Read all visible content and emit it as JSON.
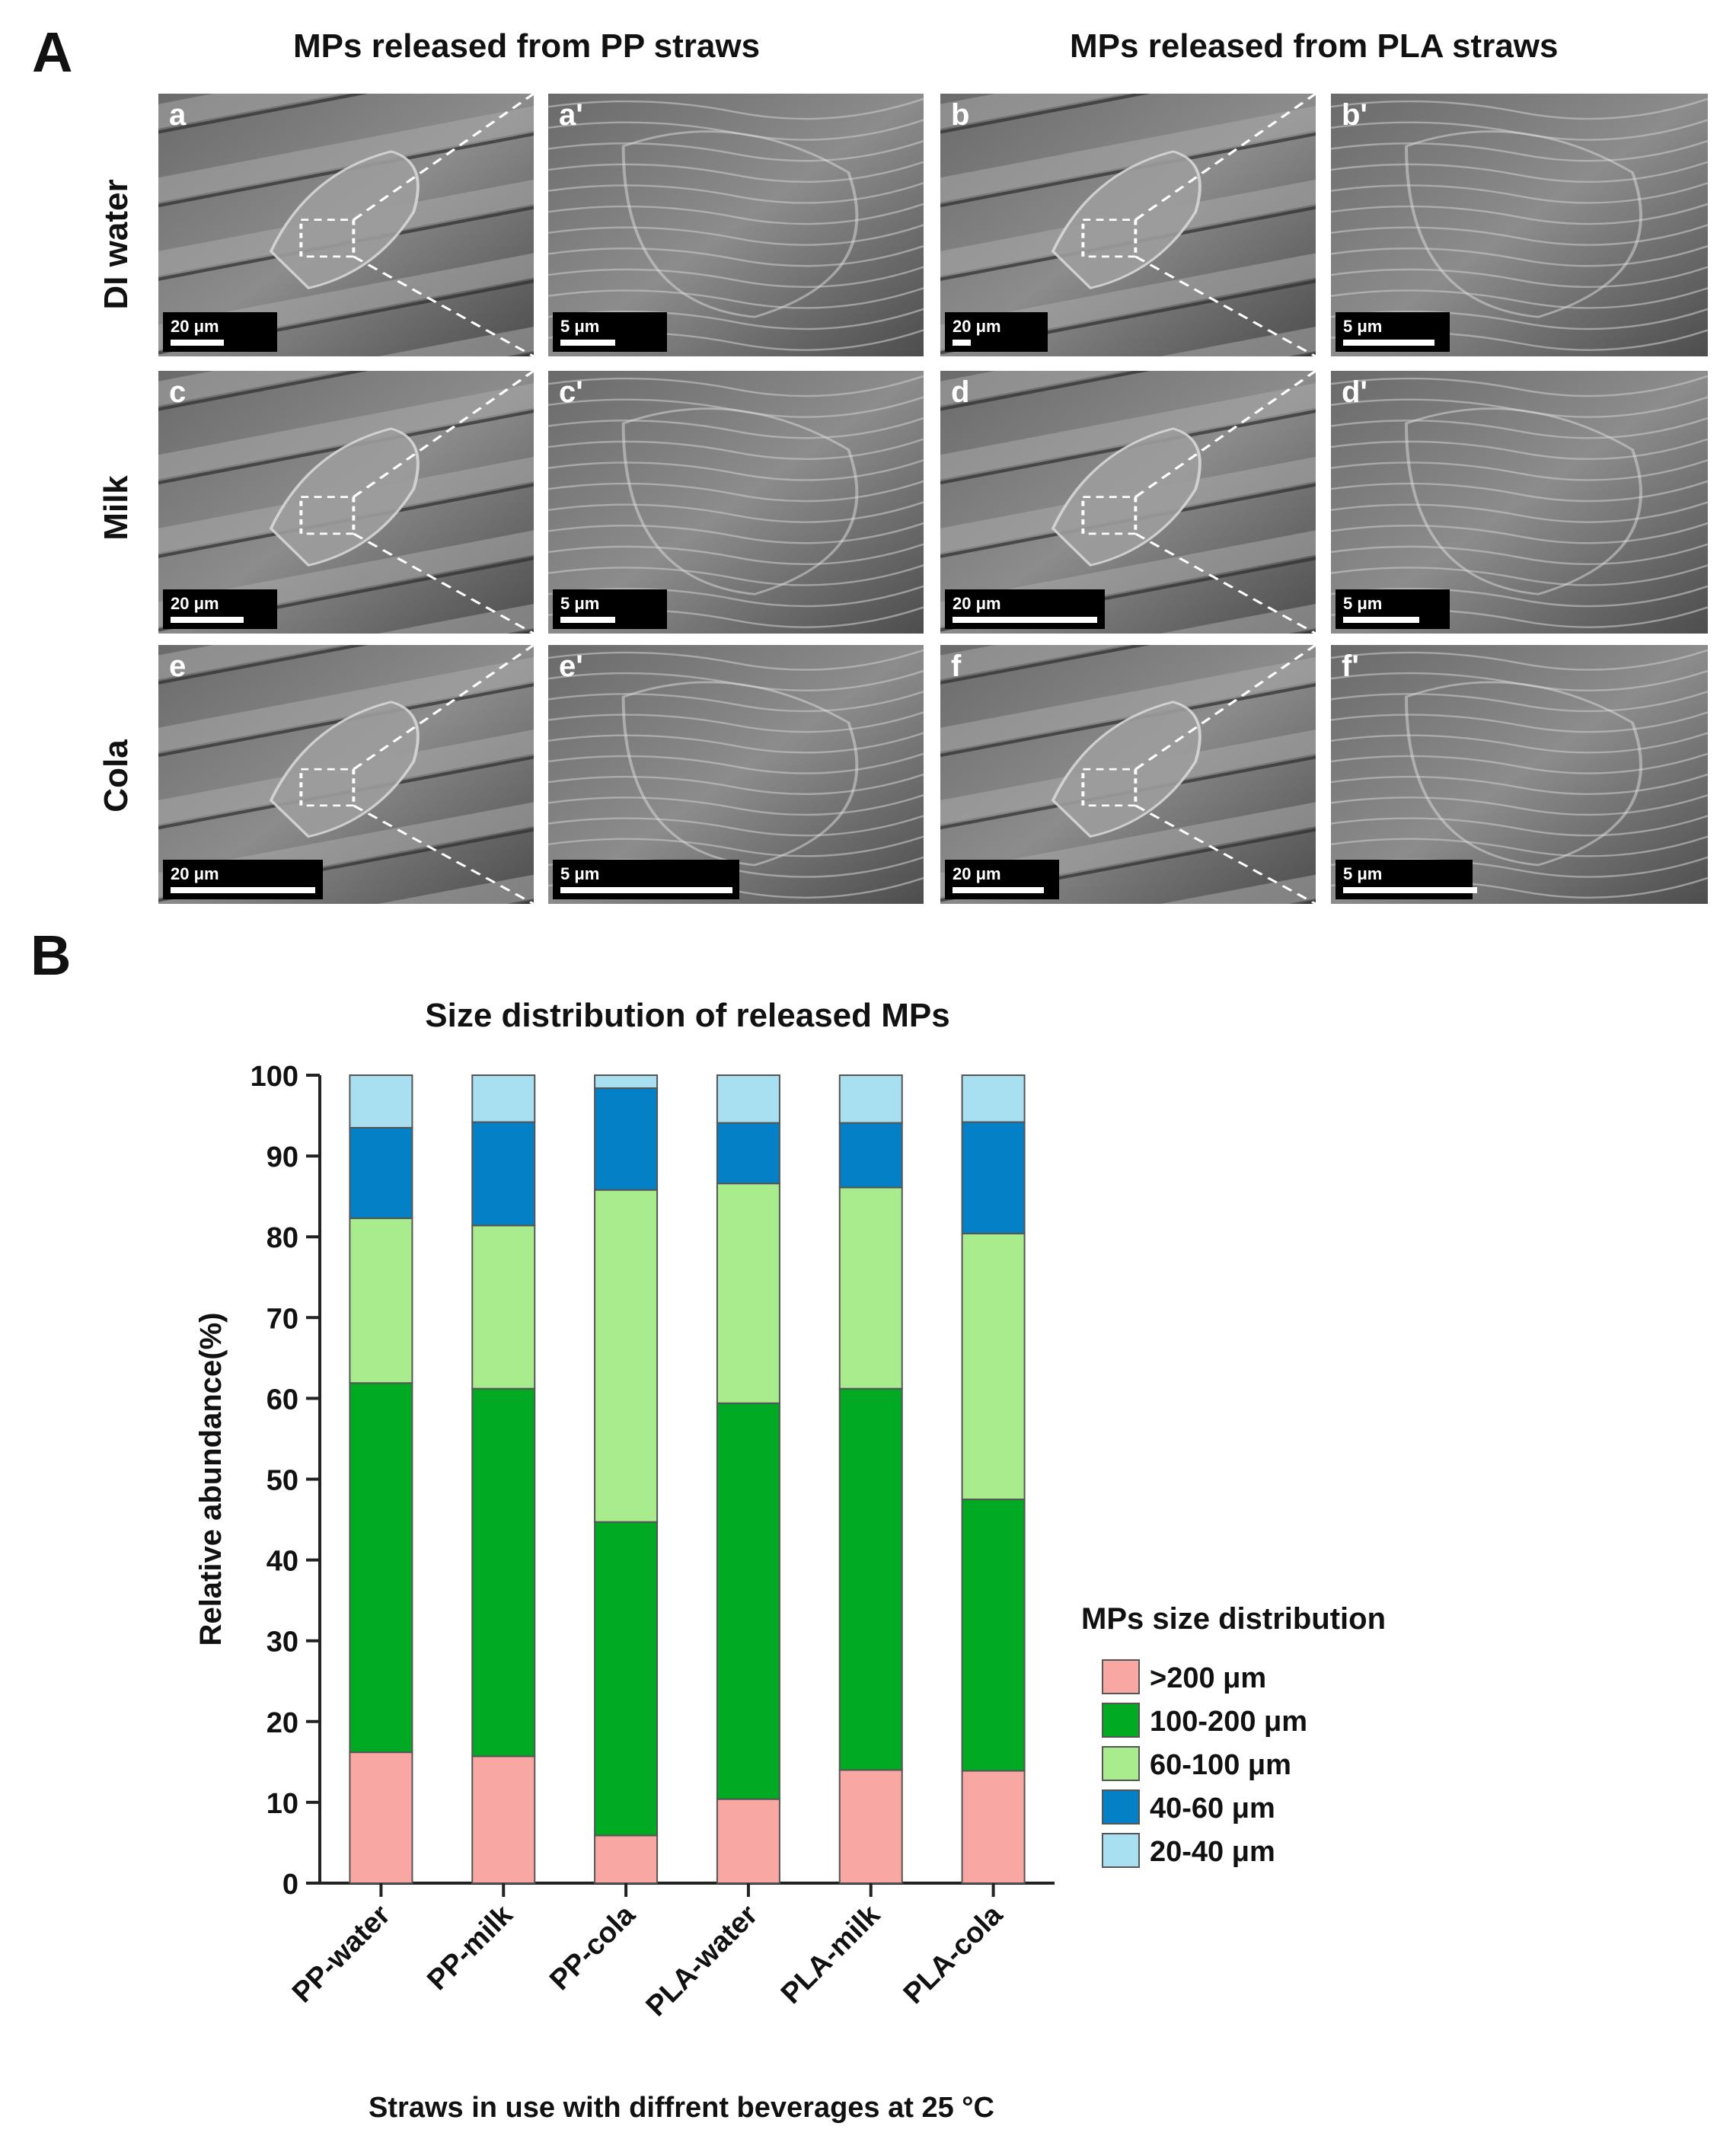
{
  "panel_a": {
    "letter": "A",
    "col_titles": [
      "MPs released from PP straws",
      "MPs released from PLA straws"
    ],
    "row_labels": [
      "DI water",
      "Milk",
      "Cola"
    ],
    "images": [
      {
        "label": "a",
        "scale": "20 μm"
      },
      {
        "label": "a'",
        "scale": "5 μm"
      },
      {
        "label": "b",
        "scale": "20 μm"
      },
      {
        "label": "b'",
        "scale": "5 μm"
      },
      {
        "label": "c",
        "scale": "20 μm"
      },
      {
        "label": "c'",
        "scale": "5 μm"
      },
      {
        "label": "d",
        "scale": "20 μm"
      },
      {
        "label": "d'",
        "scale": "5 μm"
      },
      {
        "label": "e",
        "scale": "20 μm"
      },
      {
        "label": "e'",
        "scale": "5 μm"
      },
      {
        "label": "f",
        "scale": "20 μm"
      },
      {
        "label": "f'",
        "scale": "5 μm"
      }
    ]
  },
  "panel_b": {
    "letter": "B"
  },
  "chart_data": {
    "type": "bar",
    "stacked": true,
    "title": "Size distribution of released MPs",
    "xlabel": "Straws in use with diffrent beverages at 25 °C",
    "ylabel": "Relative abundance(%)",
    "ylim": [
      0,
      100
    ],
    "yticks": [
      0,
      10,
      20,
      30,
      40,
      50,
      60,
      70,
      80,
      90,
      100
    ],
    "categories": [
      "PP-water",
      "PP-milk",
      "PP-cola",
      "PLA-water",
      "PLA-milk",
      "PLA-cola"
    ],
    "legend_title": "MPs size distribution",
    "legend_position": "right",
    "series": [
      {
        "name": ">200 μm",
        "color": "#f9a7a3",
        "values": [
          16.2,
          15.7,
          5.9,
          10.4,
          14.0,
          13.9
        ]
      },
      {
        "name": "100-200 μm",
        "color": "#00aa22",
        "values": [
          45.7,
          45.5,
          38.8,
          49.0,
          47.2,
          33.6
        ]
      },
      {
        "name": "60-100 μm",
        "color": "#a8ec8e",
        "values": [
          20.4,
          20.2,
          41.1,
          27.2,
          24.9,
          32.9
        ]
      },
      {
        "name": "40-60 μm",
        "color": "#0480c6",
        "values": [
          11.2,
          12.8,
          12.6,
          7.5,
          8.0,
          13.8
        ]
      },
      {
        "name": "20-40 μm",
        "color": "#a8e0f2",
        "values": [
          6.5,
          5.8,
          1.6,
          5.9,
          5.9,
          5.8
        ]
      }
    ],
    "grid": false
  }
}
